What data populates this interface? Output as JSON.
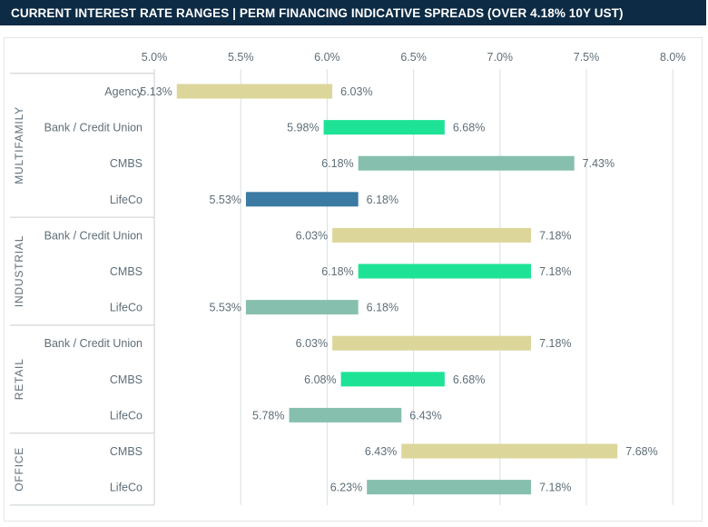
{
  "header": {
    "title": "CURRENT INTEREST RATE RANGES  |  PERM FINANCING INDICATIVE SPREADS (OVER 4.18% 10Y UST)"
  },
  "colors": {
    "header_bg": "#0d2b45",
    "khaki": "#dcd69a",
    "green": "#1ee396",
    "teal": "#86bfae",
    "blue": "#3a7aa3",
    "label": "#5e6e78",
    "grid": "#dcdfe1"
  },
  "chart_data": {
    "type": "range-bar",
    "orientation": "horizontal",
    "xlim": [
      5.0,
      8.0
    ],
    "x_ticks": [
      "5.0%",
      "5.5%",
      "6.0%",
      "6.5%",
      "7.0%",
      "7.5%",
      "8.0%"
    ],
    "x_tick_values": [
      5.0,
      5.5,
      6.0,
      6.5,
      7.0,
      7.5,
      8.0
    ],
    "grid": true,
    "groups": [
      {
        "name": "MULTIFAMILY",
        "rows": [
          {
            "label": "Agency",
            "low": 5.13,
            "high": 6.03,
            "low_label": "5.13%",
            "high_label": "6.03%",
            "color": "khaki"
          },
          {
            "label": "Bank / Credit Union",
            "low": 5.98,
            "high": 6.68,
            "low_label": "5.98%",
            "high_label": "6.68%",
            "color": "green"
          },
          {
            "label": "CMBS",
            "low": 6.18,
            "high": 7.43,
            "low_label": "6.18%",
            "high_label": "7.43%",
            "color": "teal"
          },
          {
            "label": "LifeCo",
            "low": 5.53,
            "high": 6.18,
            "low_label": "5.53%",
            "high_label": "6.18%",
            "color": "blue"
          }
        ]
      },
      {
        "name": "INDUSTRIAL",
        "rows": [
          {
            "label": "Bank / Credit Union",
            "low": 6.03,
            "high": 7.18,
            "low_label": "6.03%",
            "high_label": "7.18%",
            "color": "khaki"
          },
          {
            "label": "CMBS",
            "low": 6.18,
            "high": 7.18,
            "low_label": "6.18%",
            "high_label": "7.18%",
            "color": "green"
          },
          {
            "label": "LifeCo",
            "low": 5.53,
            "high": 6.18,
            "low_label": "5.53%",
            "high_label": "6.18%",
            "color": "teal"
          }
        ]
      },
      {
        "name": "RETAIL",
        "rows": [
          {
            "label": "Bank / Credit Union",
            "low": 6.03,
            "high": 7.18,
            "low_label": "6.03%",
            "high_label": "7.18%",
            "color": "khaki"
          },
          {
            "label": "CMBS",
            "low": 6.08,
            "high": 6.68,
            "low_label": "6.08%",
            "high_label": "6.68%",
            "color": "green"
          },
          {
            "label": "LifeCo",
            "low": 5.78,
            "high": 6.43,
            "low_label": "5.78%",
            "high_label": "6.43%",
            "color": "teal"
          }
        ]
      },
      {
        "name": "OFFICE",
        "rows": [
          {
            "label": "CMBS",
            "low": 6.43,
            "high": 7.68,
            "low_label": "6.43%",
            "high_label": "7.68%",
            "color": "khaki"
          },
          {
            "label": "LifeCo",
            "low": 6.23,
            "high": 7.18,
            "low_label": "6.23%",
            "high_label": "7.18%",
            "color": "teal"
          }
        ]
      }
    ]
  }
}
